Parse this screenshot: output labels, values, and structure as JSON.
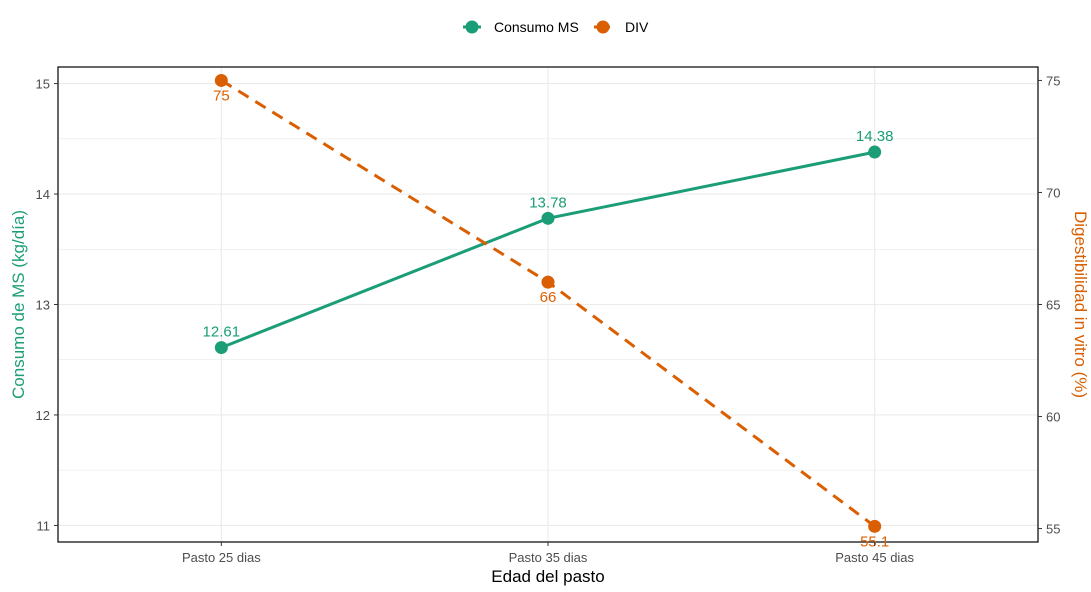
{
  "chart_data": {
    "type": "line",
    "categories": [
      "Pasto 25 dias",
      "Pasto 35 dias",
      "Pasto 45 dias"
    ],
    "xlabel": "Edad del pasto",
    "ylabel_left": "Consumo de MS (kg/día)",
    "ylabel_right": "Digestibilidad in vitro (%)",
    "ylim_left": [
      10.85,
      15.15
    ],
    "ylim_right": [
      54.4,
      75.6
    ],
    "yticks_left": [
      11,
      12,
      13,
      14,
      15
    ],
    "yticks_right": [
      55,
      60,
      65,
      70,
      75
    ],
    "grid": true,
    "legend_position": "top",
    "series": [
      {
        "name": "Consumo MS",
        "axis": "left",
        "values": [
          12.61,
          13.78,
          14.38
        ],
        "labels": [
          "12.61",
          "13.78",
          "14.38"
        ],
        "color": "#1b9e77",
        "line_style": "solid"
      },
      {
        "name": "DIV",
        "axis": "right",
        "values": [
          75,
          66,
          55.1
        ],
        "labels": [
          "75",
          "66",
          "55.1"
        ],
        "color": "#d95f02",
        "line_style": "dashed"
      }
    ]
  }
}
